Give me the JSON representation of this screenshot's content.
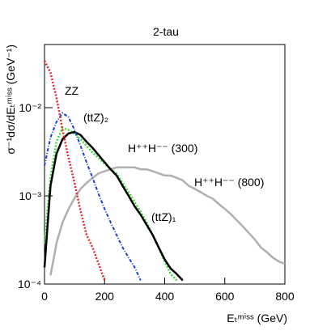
{
  "chart_data": {
    "type": "line",
    "title": "2-tau",
    "x_label": "Eₜᵐⁱˢˢ (GeV)",
    "y_label": "σ⁻¹dσ/dEₜᵐⁱˢˢ (GeV⁻¹)",
    "log_y": true,
    "xlim": [
      0,
      800
    ],
    "xticks": [
      0,
      200,
      400,
      600,
      800
    ],
    "ylim": [
      0.0001,
      0.052
    ],
    "yticks": [
      {
        "value": 0.0001,
        "label": "10⁻⁴"
      },
      {
        "value": 0.001,
        "label": "10⁻³"
      },
      {
        "value": 0.01,
        "label": "10⁻²"
      }
    ],
    "x": [
      0,
      20,
      40,
      60,
      80,
      100,
      120,
      140,
      160,
      180,
      200,
      220,
      240,
      260,
      280,
      300,
      320,
      340,
      360,
      380,
      400,
      420,
      440,
      460,
      480,
      500,
      520,
      540,
      560,
      580,
      600,
      620,
      640,
      660,
      680,
      700,
      720,
      740,
      760,
      780,
      800
    ],
    "series": [
      {
        "name": "ZZ",
        "color": "#e8262a",
        "style": "dotted",
        "values": [
          0.034,
          0.025,
          0.013,
          0.0056,
          0.0027,
          0.0014,
          0.00068,
          0.00036,
          0.00026,
          0.00017,
          0.00011,
          null,
          null,
          null,
          null,
          null,
          null,
          null,
          null,
          null,
          null,
          null,
          null,
          null,
          null,
          null,
          null,
          null,
          null,
          null,
          null,
          null,
          null,
          null,
          null,
          null,
          null,
          null,
          null,
          null,
          null
        ]
      },
      {
        "name": "(ttZ)₂",
        "color": "#1f3fd0",
        "style": "dashdot",
        "values": [
          0.0022,
          0.0046,
          0.0069,
          0.0087,
          0.0078,
          0.0056,
          0.0037,
          0.0024,
          0.0016,
          0.00105,
          0.00071,
          0.0005,
          0.00036,
          0.00026,
          0.0002,
          0.000155,
          0.00011,
          null,
          null,
          null,
          null,
          null,
          null,
          null,
          null,
          null,
          null,
          null,
          null,
          null,
          null,
          null,
          null,
          null,
          null,
          null,
          null,
          null,
          null,
          null,
          null
        ]
      },
      {
        "name": "H⁺⁺H⁻⁻ (300)",
        "color": "#000000",
        "style": "solid",
        "values": [
          0.000155,
          0.0013,
          0.003,
          0.0044,
          0.0051,
          0.0053,
          0.0049,
          0.0041,
          0.0035,
          0.0029,
          0.0024,
          0.002,
          0.0017,
          0.0013,
          0.001,
          0.00076,
          0.00061,
          0.00047,
          0.00036,
          0.00026,
          0.00019,
          0.00015,
          0.00013,
          0.00011,
          null,
          null,
          null,
          null,
          null,
          null,
          null,
          null,
          null,
          null,
          null,
          null,
          null,
          null,
          null,
          null,
          null
        ]
      },
      {
        "name": "(ttZ)₁",
        "color": "#33dd33",
        "style": "dotted",
        "values": [
          0.00029,
          0.0016,
          0.0041,
          0.0059,
          0.0056,
          0.0051,
          0.0044,
          0.0037,
          0.0031,
          0.0027,
          0.0023,
          0.002,
          0.0018,
          0.0014,
          0.0011,
          0.00085,
          0.00066,
          0.0005,
          0.00036,
          0.00026,
          0.00018,
          0.00013,
          0.00011,
          null,
          null,
          null,
          null,
          null,
          null,
          null,
          null,
          null,
          null,
          null,
          null,
          null,
          null,
          null,
          null,
          null,
          null
        ]
      },
      {
        "name": "H⁺⁺H⁻⁻ (800)",
        "color": "#b0b0b0",
        "style": "solid",
        "values": [
          null,
          0.000125,
          0.00029,
          0.0005,
          0.00071,
          0.00094,
          0.0012,
          0.0014,
          0.0016,
          0.0018,
          0.0019,
          0.002,
          0.0021,
          0.0021,
          0.0021,
          0.0021,
          0.002,
          0.002,
          0.0019,
          0.0018,
          0.0017,
          0.0017,
          0.0016,
          0.0015,
          0.0013,
          0.0012,
          0.0011,
          0.001,
          0.00093,
          0.00081,
          0.00071,
          0.00062,
          0.00053,
          0.00045,
          0.00038,
          0.00032,
          0.00026,
          0.00023,
          0.0002,
          0.00018,
          0.00017
        ]
      }
    ]
  }
}
